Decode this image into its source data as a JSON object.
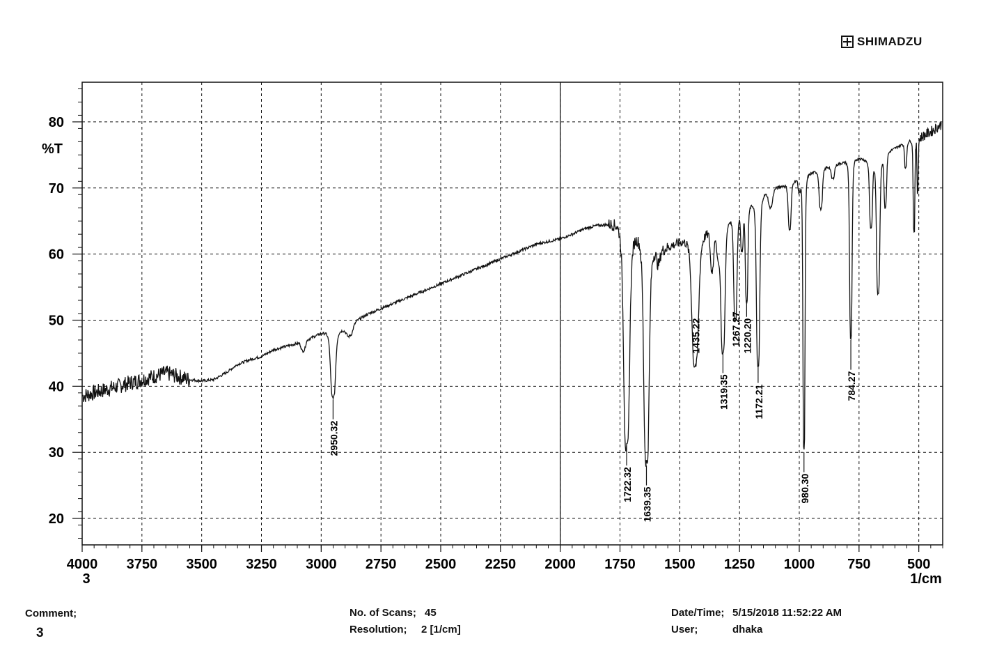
{
  "brand": {
    "logo_text": "SHIMADZU",
    "logo_icon": "circle-cross-logo-icon"
  },
  "chart_data": {
    "type": "line",
    "ylabel": "%T",
    "xlabel_unit": "1/cm",
    "x_axis_extra_label": "3",
    "xlim": [
      4000,
      400
    ],
    "ylim": [
      16,
      86
    ],
    "x_ticks": [
      4000,
      3750,
      3500,
      3250,
      3000,
      2750,
      2500,
      2250,
      2000,
      1750,
      1500,
      1250,
      1000,
      750,
      500
    ],
    "y_ticks": [
      20,
      30,
      40,
      50,
      60,
      70,
      80
    ],
    "grid": true,
    "series": [
      {
        "baseline": [
          [
            4000,
            38.5
          ],
          [
            3900,
            39.5
          ],
          [
            3800,
            40.5
          ],
          [
            3700,
            41.5
          ],
          [
            3650,
            42.0
          ],
          [
            3600,
            41.5
          ],
          [
            3550,
            41.0
          ],
          [
            3500,
            40.8
          ],
          [
            3450,
            41.0
          ],
          [
            3400,
            42.0
          ],
          [
            3350,
            43.3
          ],
          [
            3300,
            44.0
          ],
          [
            3250,
            44.5
          ],
          [
            3200,
            45.5
          ],
          [
            3150,
            46.0
          ],
          [
            3100,
            46.5
          ],
          [
            3050,
            47.2
          ],
          [
            3000,
            48.0
          ],
          [
            2975,
            48.2
          ],
          [
            2900,
            48.6
          ],
          [
            2850,
            50.0
          ],
          [
            2800,
            51.0
          ],
          [
            2700,
            52.5
          ],
          [
            2600,
            54.0
          ],
          [
            2500,
            55.5
          ],
          [
            2400,
            57.0
          ],
          [
            2300,
            58.5
          ],
          [
            2200,
            60.0
          ],
          [
            2100,
            61.5
          ],
          [
            2000,
            62.3
          ],
          [
            1950,
            63.0
          ],
          [
            1900,
            63.8
          ],
          [
            1850,
            64.3
          ],
          [
            1800,
            64.5
          ],
          [
            1760,
            64.6
          ],
          [
            1740,
            64.0
          ],
          [
            1700,
            63.0
          ],
          [
            1650,
            62.5
          ],
          [
            1620,
            61.0
          ],
          [
            1580,
            60.5
          ],
          [
            1550,
            61.0
          ],
          [
            1500,
            61.8
          ],
          [
            1450,
            62.5
          ],
          [
            1400,
            63.0
          ],
          [
            1350,
            64.0
          ],
          [
            1300,
            65.0
          ],
          [
            1250,
            66.5
          ],
          [
            1200,
            67.5
          ],
          [
            1150,
            69.0
          ],
          [
            1100,
            70.0
          ],
          [
            1050,
            70.5
          ],
          [
            1000,
            71.5
          ],
          [
            950,
            72.2
          ],
          [
            900,
            73.0
          ],
          [
            850,
            73.5
          ],
          [
            800,
            74.0
          ],
          [
            750,
            74.5
          ],
          [
            700,
            74.0
          ],
          [
            650,
            75.0
          ],
          [
            600,
            76.0
          ],
          [
            550,
            77.0
          ],
          [
            500,
            77.5
          ],
          [
            450,
            78.5
          ],
          [
            410,
            79.5
          ]
        ],
        "bands": [
          [
            3075,
            1.5,
            10
          ],
          [
            2950.32,
            10.0,
            12
          ],
          [
            2880,
            1.5,
            15
          ],
          [
            1722.32,
            33.0,
            14
          ],
          [
            1639.35,
            33.5,
            13
          ],
          [
            1590,
            2.0,
            8
          ],
          [
            1435.22,
            19.5,
            16
          ],
          [
            1365,
            6.0,
            8
          ],
          [
            1340,
            4.0,
            8
          ],
          [
            1319.35,
            19.5,
            10
          ],
          [
            1267.27,
            16.0,
            8
          ],
          [
            1240,
            6.0,
            6
          ],
          [
            1220.2,
            14.5,
            6
          ],
          [
            1172.21,
            25.5,
            8
          ],
          [
            1120,
            2.5,
            10
          ],
          [
            1040,
            7.0,
            7
          ],
          [
            1000,
            2.0,
            6
          ],
          [
            980.3,
            41.5,
            5
          ],
          [
            910,
            6.0,
            8
          ],
          [
            860,
            2.0,
            8
          ],
          [
            784.27,
            27.0,
            6
          ],
          [
            700,
            10.0,
            7
          ],
          [
            670,
            20.5,
            8
          ],
          [
            640,
            8.0,
            6
          ],
          [
            555,
            4.0,
            5
          ],
          [
            520,
            14.0,
            4
          ],
          [
            505,
            8.0,
            3
          ]
        ]
      }
    ],
    "peak_labels": [
      {
        "x": 2950.32,
        "text": "2950.32",
        "y_tip": 38.0,
        "y_top": 35.0,
        "y_bottom": 28.0
      },
      {
        "x": 1722.32,
        "text": "1722.32",
        "y_tip": 31.0,
        "y_top": 28.0,
        "y_bottom": 19.5
      },
      {
        "x": 1639.35,
        "text": "1639.35",
        "y_tip": 28.0,
        "y_top": 25.0,
        "y_bottom": 16.5
      },
      {
        "x": 1435.22,
        "text": "1435.22",
        "y_tip": 43.0,
        "y_top": 50.5,
        "y_bottom": 43.5
      },
      {
        "x": 1319.35,
        "text": "1319.35",
        "y_tip": 45.0,
        "y_top": 42.0,
        "y_bottom": 34.5
      },
      {
        "x": 1267.27,
        "text": "1267.27",
        "y_tip": 50.5,
        "y_top": 51.5,
        "y_bottom": 45.0
      },
      {
        "x": 1220.2,
        "text": "1220.20",
        "y_tip": 53.0,
        "y_top": 50.5,
        "y_bottom": 42.5
      },
      {
        "x": 1172.21,
        "text": "1172.21",
        "y_tip": 43.0,
        "y_top": 40.5,
        "y_bottom": 32.5
      },
      {
        "x": 980.3,
        "text": "980.30",
        "y_tip": 30.0,
        "y_top": 27.0,
        "y_bottom": 20.5
      },
      {
        "x": 784.27,
        "text": "784.27",
        "y_tip": 47.0,
        "y_top": 42.5,
        "y_bottom": 35.0
      }
    ]
  },
  "info": {
    "comment_label": "Comment;",
    "comment_value": "3",
    "scans_label": "No. of Scans;",
    "scans_value": "45",
    "resolution_label": "Resolution;",
    "resolution_value": "2 [1/cm]",
    "datetime_label": "Date/Time;",
    "datetime_value": "5/15/2018 11:52:22 AM",
    "user_label": "User;",
    "user_value": "dhaka"
  }
}
